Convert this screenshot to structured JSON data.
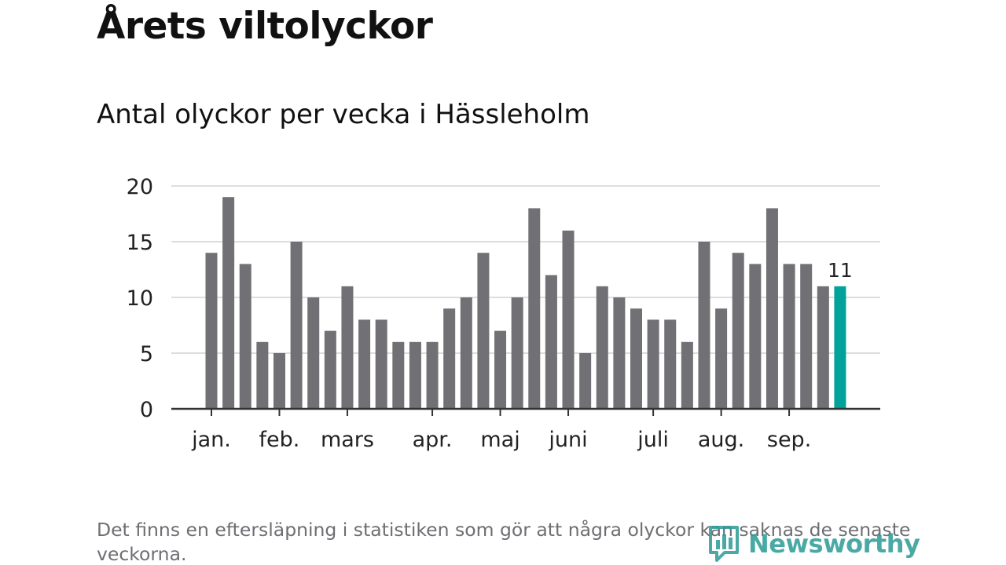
{
  "title": "Årets viltolyckor",
  "subtitle": "Antal olyckor per vecka i Hässleholm",
  "note": "Det finns en eftersläpning i statistiken som gör att några olyckor kan saknas de senaste veckorna.",
  "logo": {
    "text": "Newsworthy",
    "icon": "newsworthy-logo-icon",
    "color": "#2b9b96"
  },
  "colors": {
    "bar": "#707075",
    "highlight": "#00a29a",
    "grid": "#dddddd",
    "axis": "#333333"
  },
  "chart_data": {
    "type": "bar",
    "title": "Antal olyckor per vecka i Hässleholm",
    "xlabel": "",
    "ylabel": "",
    "ylim": [
      0,
      20
    ],
    "yticks": [
      0,
      5,
      10,
      15,
      20
    ],
    "grid": true,
    "values": [
      14,
      19,
      13,
      6,
      5,
      15,
      10,
      7,
      11,
      8,
      8,
      6,
      6,
      6,
      9,
      10,
      14,
      7,
      10,
      18,
      12,
      16,
      5,
      11,
      10,
      9,
      8,
      8,
      6,
      15,
      9,
      14,
      13,
      18,
      13,
      13,
      11,
      11
    ],
    "highlight_index": 37,
    "data_labels": [
      {
        "index": 37,
        "text": "11"
      }
    ],
    "month_ticks": [
      {
        "label": "jan.",
        "index": 0
      },
      {
        "label": "feb.",
        "index": 4
      },
      {
        "label": "mars",
        "index": 8
      },
      {
        "label": "apr.",
        "index": 13
      },
      {
        "label": "maj",
        "index": 17
      },
      {
        "label": "juni",
        "index": 21
      },
      {
        "label": "juli",
        "index": 26
      },
      {
        "label": "aug.",
        "index": 30
      },
      {
        "label": "sep.",
        "index": 34
      }
    ]
  }
}
